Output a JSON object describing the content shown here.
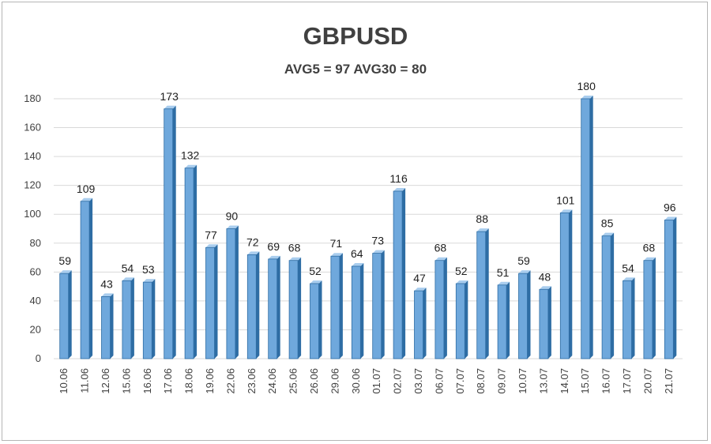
{
  "chart_data": {
    "type": "bar",
    "title": "GBPUSD",
    "subtitle": "AVG5 = 97 AVG30 = 80",
    "categories": [
      "10.06",
      "11.06",
      "12.06",
      "15.06",
      "16.06",
      "17.06",
      "18.06",
      "19.06",
      "22.06",
      "23.06",
      "24.06",
      "25.06",
      "26.06",
      "29.06",
      "30.06",
      "01.07",
      "02.07",
      "03.07",
      "06.07",
      "07.07",
      "08.07",
      "09.07",
      "10.07",
      "13.07",
      "14.07",
      "15.07",
      "16.07",
      "17.07",
      "20.07",
      "21.07"
    ],
    "values": [
      59,
      109,
      43,
      54,
      53,
      173,
      132,
      77,
      90,
      72,
      69,
      68,
      52,
      71,
      64,
      73,
      116,
      47,
      68,
      52,
      88,
      51,
      59,
      48,
      101,
      180,
      85,
      54,
      68,
      96
    ],
    "yticks": [
      0,
      20,
      40,
      60,
      80,
      100,
      120,
      140,
      160,
      180
    ],
    "ylim": [
      0,
      180
    ],
    "grid": true,
    "legend": "none",
    "colors": {
      "bar_front": "#6fa8dc",
      "bar_side": "#2e6da4",
      "bar_top": "#a9cdee",
      "grid": "#d9d9d9",
      "text": "#404040"
    }
  }
}
